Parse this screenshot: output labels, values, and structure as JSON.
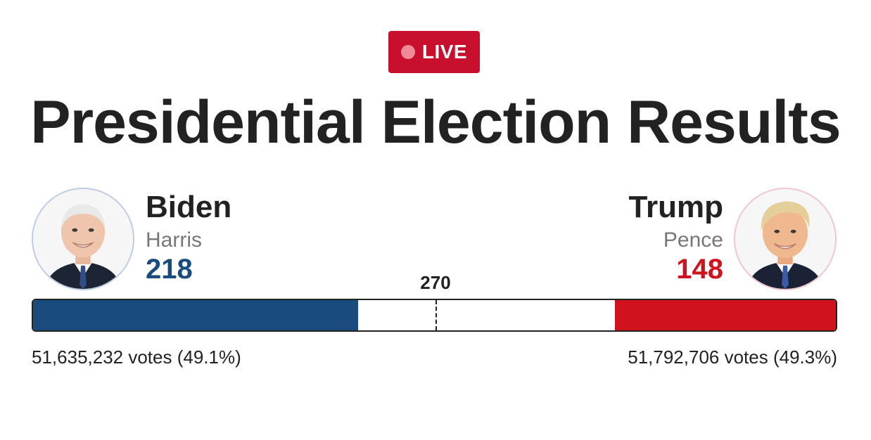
{
  "live_badge": {
    "label": "LIVE",
    "color": "#c8102e"
  },
  "page_title": "Presidential Election Results",
  "threshold": {
    "label": "270",
    "value": 270,
    "total_electoral_votes": 538
  },
  "candidates": [
    {
      "side": "left",
      "name": "Biden",
      "running_mate": "Harris",
      "electoral_votes_label": "218",
      "electoral_votes": 218,
      "popular_vote": "51,635,232 votes (49.1%)",
      "color": "#1a4b7e",
      "photo_icon": "biden-portrait"
    },
    {
      "side": "right",
      "name": "Trump",
      "running_mate": "Pence",
      "electoral_votes_label": "148",
      "electoral_votes": 148,
      "popular_vote": "51,792,706 votes (49.3%)",
      "color": "#d0121f",
      "photo_icon": "trump-portrait"
    }
  ]
}
